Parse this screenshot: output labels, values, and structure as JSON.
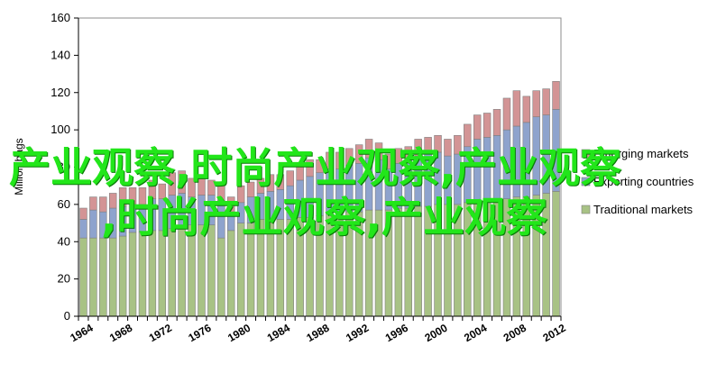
{
  "chart_data": {
    "type": "bar",
    "stacked": true,
    "ylabel": "Million bags",
    "xlabel": "",
    "ylim": [
      0,
      160
    ],
    "yticks": [
      0,
      20,
      40,
      60,
      80,
      100,
      120,
      140,
      160
    ],
    "x": [
      1964,
      1965,
      1966,
      1967,
      1968,
      1969,
      1970,
      1971,
      1972,
      1973,
      1974,
      1975,
      1976,
      1977,
      1978,
      1979,
      1980,
      1981,
      1982,
      1983,
      1984,
      1985,
      1986,
      1987,
      1988,
      1989,
      1990,
      1991,
      1992,
      1993,
      1994,
      1995,
      1996,
      1997,
      1998,
      1999,
      2000,
      2001,
      2002,
      2003,
      2004,
      2005,
      2006,
      2007,
      2008,
      2009,
      2010,
      2011,
      2012
    ],
    "xtick_labels": [
      "1964",
      "1968",
      "1972",
      "1976",
      "1980",
      "1984",
      "1988",
      "1992",
      "1996",
      "2000",
      "2004",
      "2008",
      "2012"
    ],
    "grid": false,
    "legend_position": "right",
    "series": [
      {
        "name": "Traditional markets",
        "color": "#a8c285",
        "values": [
          42,
          42,
          42,
          42,
          43,
          45,
          45,
          46,
          46,
          47,
          48,
          49,
          49,
          49,
          42,
          46,
          50,
          50,
          52,
          52,
          52,
          52,
          53,
          53,
          54,
          55,
          55,
          56,
          56,
          57,
          57,
          57,
          58,
          58,
          59,
          59,
          60,
          60,
          60,
          61,
          61,
          62,
          62,
          63,
          64,
          64,
          65,
          66,
          67
        ]
      },
      {
        "name": "Exporting countries",
        "color": "#8ea3cd",
        "values": [
          10,
          15,
          14,
          16,
          16,
          15,
          15,
          17,
          17,
          18,
          18,
          15,
          16,
          16,
          20,
          10,
          11,
          14,
          14,
          15,
          16,
          18,
          20,
          22,
          23,
          24,
          24,
          25,
          26,
          28,
          27,
          22,
          24,
          26,
          27,
          28,
          28,
          26,
          27,
          30,
          34,
          34,
          35,
          37,
          38,
          40,
          42,
          42,
          44
        ]
      },
      {
        "name": "Emerging markets",
        "color": "#d39495",
        "values": [
          6,
          7,
          8,
          8,
          10,
          9,
          9,
          10,
          8,
          12,
          12,
          10,
          11,
          8,
          8,
          8,
          9,
          8,
          8,
          9,
          8,
          8,
          9,
          9,
          7,
          9,
          9,
          9,
          10,
          10,
          9,
          8,
          8,
          7,
          9,
          9,
          9,
          9,
          10,
          12,
          13,
          13,
          14,
          17,
          19,
          14,
          14,
          14,
          15
        ]
      }
    ]
  }
}
